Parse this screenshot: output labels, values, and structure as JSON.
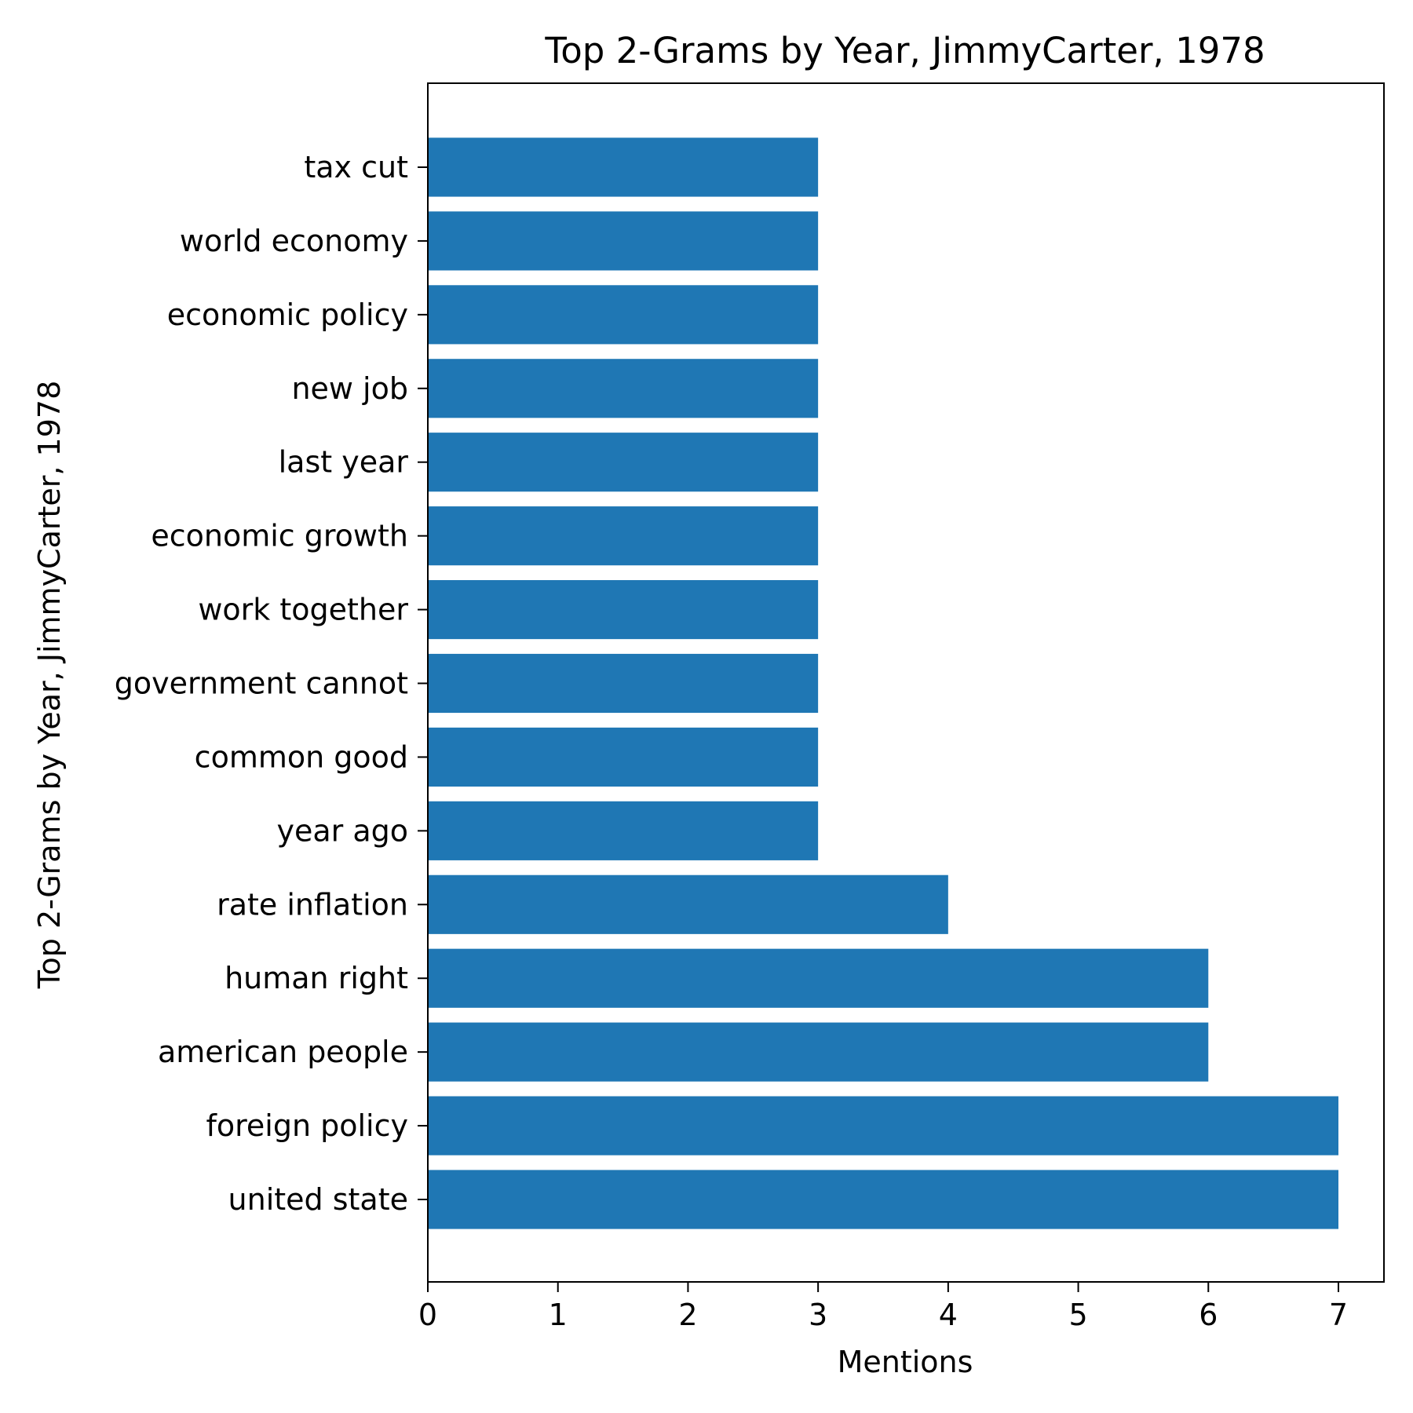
{
  "chart_data": {
    "type": "bar",
    "orientation": "horizontal",
    "title": "Top 2-Grams by Year, JimmyCarter, 1978",
    "xlabel": "Mentions",
    "ylabel": "Top 2-Grams by Year, JimmyCarter, 1978",
    "categories": [
      "united state",
      "foreign policy",
      "american people",
      "human right",
      "rate inflation",
      "year ago",
      "common good",
      "government cannot",
      "work together",
      "economic growth",
      "last year",
      "new job",
      "economic policy",
      "world economy",
      "tax cut"
    ],
    "values": [
      7,
      7,
      6,
      6,
      4,
      3,
      3,
      3,
      3,
      3,
      3,
      3,
      3,
      3,
      3
    ],
    "xlim": [
      0,
      7.35
    ],
    "xticks": [
      "0",
      "1",
      "2",
      "3",
      "4",
      "5",
      "6",
      "7"
    ],
    "bar_color": "#1f77b4",
    "grid": false,
    "legend": "none"
  }
}
